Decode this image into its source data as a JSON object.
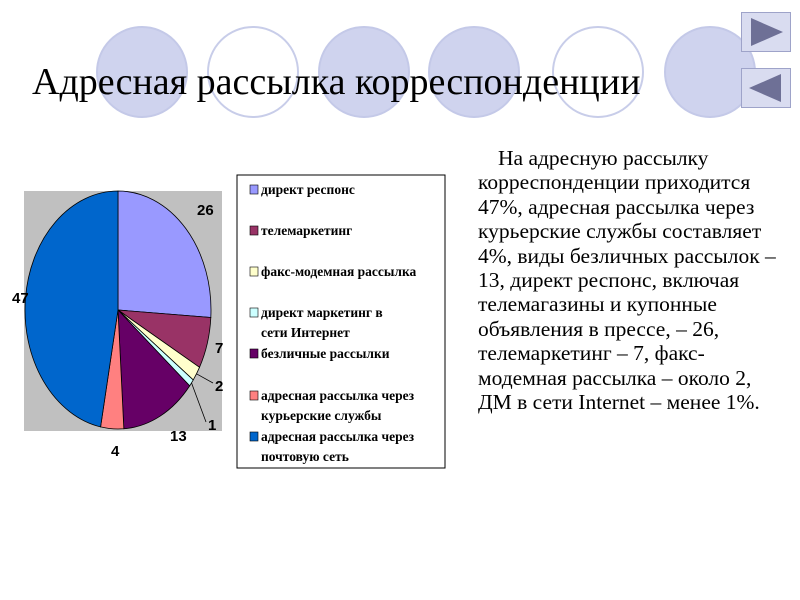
{
  "slide": {
    "title": "Адресная рассылка корреспонденции",
    "body": "На адресную рассылку корреспонденции приходится 47%, адресная рассылка через курьерские службы составляет 4%, виды безличных рассылок – 13, директ респонс, включая телемагазины и купонные объявления в прессе, – 26, телемаркетинг – 7, факс-модемная рассылка – около 2, ДМ в сети Internet – менее 1%."
  },
  "nav": {
    "next_icon": "triangle-right-icon",
    "prev_icon": "triangle-left-icon"
  },
  "chart_data": {
    "type": "pie",
    "title": "",
    "series": [
      {
        "label": "директ респонс",
        "value": 26,
        "data_label": "26",
        "color": "#9999ff"
      },
      {
        "label": "телемаркетинг",
        "value": 7,
        "data_label": "7",
        "color": "#993366"
      },
      {
        "label": "факс-модемная рассылка",
        "value": 2,
        "data_label": "2",
        "color": "#ffffcc"
      },
      {
        "label": "директ маркетинг в сети Интернет",
        "value": 1,
        "data_label": "1",
        "color": "#ccffff"
      },
      {
        "label": "безличные рассылки",
        "value": 13,
        "data_label": "13",
        "color": "#660066"
      },
      {
        "label": "адресная рассылка через курьерские службы",
        "value": 4,
        "data_label": "4",
        "color": "#ff8080"
      },
      {
        "label": "адресная рассылка через почтовую сеть",
        "value": 47,
        "data_label": "47",
        "color": "#0066cc"
      }
    ],
    "legend_position": "right",
    "plot_background": "#c0c0c0"
  }
}
